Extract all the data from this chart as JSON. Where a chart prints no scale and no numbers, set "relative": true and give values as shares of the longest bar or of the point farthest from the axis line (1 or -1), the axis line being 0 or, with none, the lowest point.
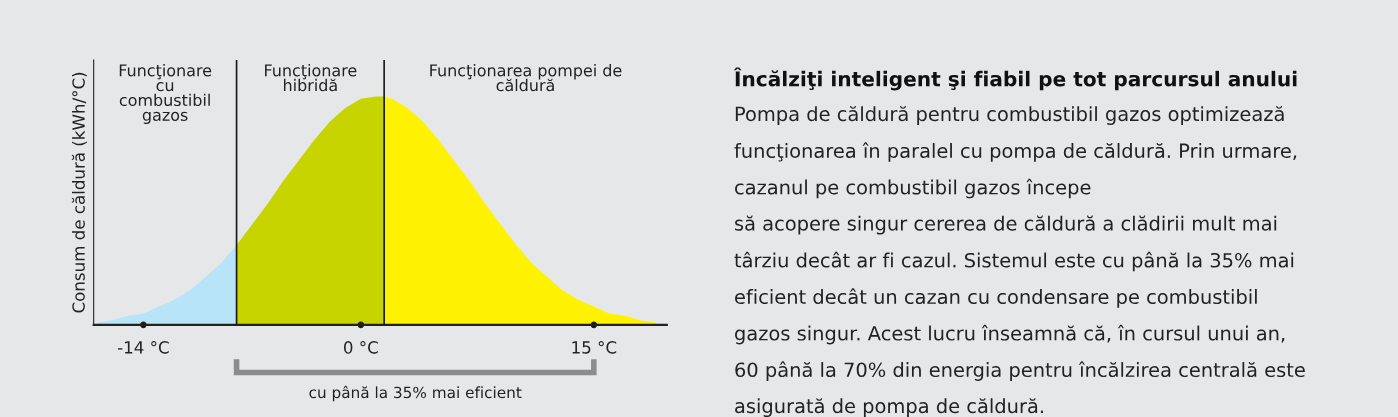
{
  "chart_data": [
    {
      "type": "area",
      "relative": true,
      "ylabel": "Consum de căldură (kWh/°C)",
      "xlim": [
        -17.2,
        19.7
      ],
      "xticks": [
        {
          "value": -14,
          "label": "-14 °C"
        },
        {
          "value": 0,
          "label": "0 °C"
        },
        {
          "value": 15,
          "label": "15 °C"
        }
      ],
      "series": [
        {
          "color": "#b8e4f7",
          "x": [
            -17,
            -16,
            -15,
            -14,
            -13,
            -12,
            -11,
            -10,
            -9,
            -8
          ],
          "values": [
            0.01,
            0.02,
            0.04,
            0.05,
            0.08,
            0.11,
            0.15,
            0.21,
            0.27,
            0.35
          ]
        },
        {
          "color": "#c8d400",
          "x": [
            -8,
            -7,
            -6,
            -5,
            -4,
            -3,
            -2,
            -1,
            0,
            1,
            1.5
          ],
          "values": [
            0.35,
            0.44,
            0.53,
            0.63,
            0.72,
            0.81,
            0.89,
            0.95,
            0.99,
            1.0,
            1.0
          ]
        },
        {
          "color": "#fff200",
          "x": [
            1.5,
            2,
            3,
            4,
            5,
            6,
            7,
            8,
            9,
            10,
            11,
            12,
            13,
            14,
            15,
            16,
            17,
            18,
            19
          ],
          "values": [
            1.0,
            0.99,
            0.95,
            0.89,
            0.81,
            0.72,
            0.63,
            0.53,
            0.44,
            0.35,
            0.27,
            0.21,
            0.15,
            0.11,
            0.08,
            0.05,
            0.04,
            0.02,
            0.01
          ]
        }
      ],
      "ref_lines": [
        {
          "axis": "x",
          "value": -8,
          "color": "#1a1a1a"
        },
        {
          "axis": "x",
          "value": 1.5,
          "color": "#1a1a1a"
        }
      ],
      "annotations": [
        "Funcţionare\ncu\ncombustibil\ngazos",
        "Funcţionare\nhibridă",
        "Funcţionarea pompei de\ncăldură",
        "cu până la 35% mai eficient"
      ],
      "grid": false,
      "legend": false
    },
    {
      "type": "other",
      "title": "Încălziţi inteligent şi fiabil pe tot parcursul anului",
      "annotations": [
        "Pompa de căldură pentru combustibil gazos optimizează",
        "funcţionarea în paralel cu pompa de căldură. Prin urmare,",
        "cazanul pe combustibil gazos începe",
        "să acopere singur cererea de căldură a clădirii mult mai",
        "târziu decât ar fi cazul. Sistemul este cu până la 35% mai",
        "eficient decât un cazan cu condensare pe combustibil",
        "gazos singur. Acest lucru înseamnă că, în cursul unui an,",
        "60 până la 70% din energia pentru încălzirea centrală este",
        "asigurată de pompa de căldură."
      ]
    }
  ]
}
